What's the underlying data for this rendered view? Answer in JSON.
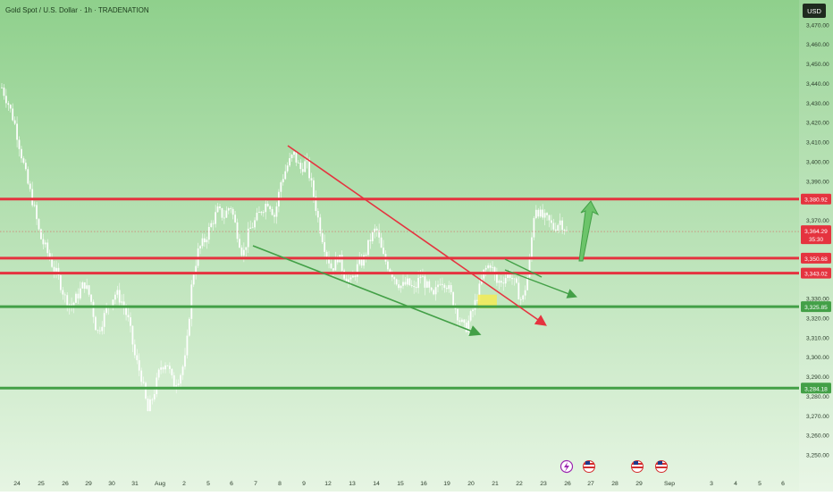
{
  "header": {
    "title": "Gold Spot / U.S. Dollar · 1h · TRADENATION",
    "currency_label": "USD"
  },
  "colors": {
    "bg_top": "#8fd08c",
    "bg_bottom": "#e6f5e3",
    "candle": "#ffffff",
    "resistance": "#e5333f",
    "support": "#43a047",
    "current_price_badge": "#e5333f",
    "highlight_zone": "#f3ea55"
  },
  "chart_data": {
    "type": "candlestick",
    "ylim": [
      3245,
      3480
    ],
    "y_ticks": [
      "3,470.00",
      "3,460.00",
      "3,450.00",
      "3,440.00",
      "3,430.00",
      "3,420.00",
      "3,410.00",
      "3,400.00",
      "3,390.00",
      "3,370.00",
      "3,330.00",
      "3,320.00",
      "3,310.00",
      "3,300.00",
      "3,290.00",
      "3,280.00",
      "3,270.00",
      "3,260.00",
      "3,250.00"
    ],
    "x_labels": [
      "24",
      "25",
      "26",
      "29",
      "30",
      "31",
      "Aug",
      "2",
      "5",
      "6",
      "7",
      "8",
      "9",
      "12",
      "13",
      "14",
      "15",
      "16",
      "19",
      "20",
      "21",
      "22",
      "23",
      "26",
      "27",
      "28",
      "29",
      "Sep",
      "3",
      "4",
      "5",
      "6"
    ],
    "price_lines": [
      {
        "value": 3380.92,
        "label": "3,380.92",
        "kind": "resistance"
      },
      {
        "value": 3350.68,
        "label": "3,350.68",
        "kind": "resistance"
      },
      {
        "value": 3343.02,
        "label": "3,343.02",
        "kind": "resistance"
      },
      {
        "value": 3325.85,
        "label": "3,325.85",
        "kind": "support"
      },
      {
        "value": 3284.18,
        "label": "3,284.18",
        "kind": "support"
      }
    ],
    "current_price": {
      "value": 3364.29,
      "label": "3,364.29",
      "countdown": "35:30"
    },
    "price_path": [
      [
        0,
        3438
      ],
      [
        1,
        3430
      ],
      [
        2,
        3420
      ],
      [
        3,
        3405
      ],
      [
        4,
        3390
      ],
      [
        5,
        3378
      ],
      [
        6,
        3362
      ],
      [
        7,
        3355
      ],
      [
        8,
        3347
      ],
      [
        9,
        3340
      ],
      [
        10,
        3330
      ],
      [
        11,
        3326
      ],
      [
        12,
        3332
      ],
      [
        13,
        3338
      ],
      [
        14,
        3330
      ],
      [
        15,
        3312
      ],
      [
        16,
        3320
      ],
      [
        17,
        3328
      ],
      [
        18,
        3333
      ],
      [
        19,
        3328
      ],
      [
        20,
        3318
      ],
      [
        21,
        3300
      ],
      [
        22,
        3290
      ],
      [
        23,
        3272
      ],
      [
        24,
        3282
      ],
      [
        25,
        3295
      ],
      [
        26,
        3298
      ],
      [
        27,
        3286
      ],
      [
        28,
        3290
      ],
      [
        29,
        3300
      ],
      [
        30,
        3340
      ],
      [
        31,
        3355
      ],
      [
        32,
        3360
      ],
      [
        33,
        3368
      ],
      [
        34,
        3375
      ],
      [
        35,
        3372
      ],
      [
        36,
        3378
      ],
      [
        37,
        3365
      ],
      [
        38,
        3352
      ],
      [
        39,
        3365
      ],
      [
        40,
        3370
      ],
      [
        41,
        3376
      ],
      [
        42,
        3380
      ],
      [
        43,
        3372
      ],
      [
        44,
        3390
      ],
      [
        45,
        3398
      ],
      [
        46,
        3404
      ],
      [
        47,
        3396
      ],
      [
        48,
        3400
      ],
      [
        49,
        3385
      ],
      [
        50,
        3368
      ],
      [
        51,
        3355
      ],
      [
        52,
        3345
      ],
      [
        53,
        3352
      ],
      [
        54,
        3342
      ],
      [
        55,
        3338
      ],
      [
        56,
        3346
      ],
      [
        57,
        3350
      ],
      [
        58,
        3360
      ],
      [
        59,
        3366
      ],
      [
        60,
        3352
      ],
      [
        61,
        3346
      ],
      [
        62,
        3340
      ],
      [
        63,
        3336
      ],
      [
        64,
        3338
      ],
      [
        65,
        3334
      ],
      [
        66,
        3342
      ],
      [
        67,
        3336
      ],
      [
        68,
        3330
      ],
      [
        69,
        3340
      ],
      [
        70,
        3338
      ],
      [
        71,
        3330
      ],
      [
        72,
        3320
      ],
      [
        73,
        3314
      ],
      [
        74,
        3322
      ],
      [
        75,
        3332
      ],
      [
        76,
        3344
      ],
      [
        77,
        3348
      ],
      [
        78,
        3338
      ],
      [
        79,
        3340
      ],
      [
        80,
        3343
      ],
      [
        81,
        3336
      ],
      [
        82,
        3328
      ],
      [
        83,
        3344
      ],
      [
        84,
        3378
      ],
      [
        85,
        3372
      ],
      [
        86,
        3370
      ],
      [
        87,
        3366
      ],
      [
        88,
        3370
      ],
      [
        89,
        3364
      ]
    ],
    "price_path_x_domain": [
      0,
      89
    ],
    "highlight_zone": {
      "x": [
        75,
        78
      ],
      "y": [
        3325,
        3332
      ]
    }
  }
}
